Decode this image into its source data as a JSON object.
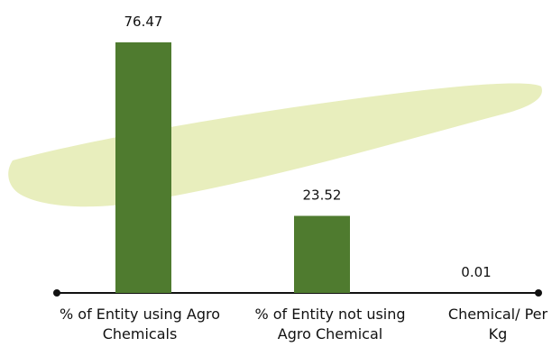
{
  "chart_data": {
    "type": "bar",
    "categories": [
      "% of Entity using Agro Chemicals",
      "% of Entity not using Agro Chemical",
      "Chemical/ Per Kg"
    ],
    "values": [
      76.47,
      23.52,
      0.01
    ],
    "color": "#4f7b2f"
  }
}
